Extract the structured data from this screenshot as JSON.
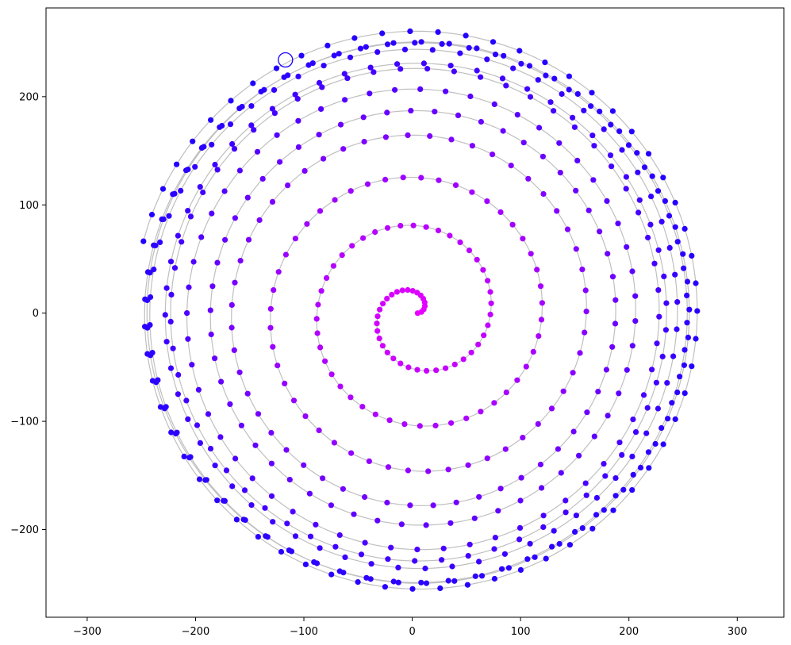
{
  "chart_data": {
    "type": "scatter",
    "title": "",
    "xlabel": "",
    "ylabel": "",
    "xlim": [
      -338,
      343
    ],
    "ylim": [
      -281,
      282
    ],
    "xticks": [
      -300,
      -200,
      -100,
      0,
      100,
      200,
      300
    ],
    "yticks": [
      -200,
      -100,
      0,
      100,
      200
    ],
    "xtick_labels": [
      "−300",
      "−200",
      "−100",
      "0",
      "100",
      "200",
      "300"
    ],
    "ytick_labels": [
      "−200",
      "−100",
      "0",
      "100",
      "200"
    ],
    "grid": false,
    "legend": "none",
    "colors": {
      "curve": "#bfbfbf",
      "inner_points": "#e800ff",
      "mid_points": "#9a00ff",
      "outer_points": "#1800ff",
      "highlight_ring": "#1800ff",
      "axes": "#000000"
    },
    "spiral_path": {
      "description_free_params": true,
      "theta_start": 0.0,
      "theta_end": 72.0,
      "center": [
        5,
        0
      ]
    },
    "series": [
      {
        "values_inner_spiral": [
          [
            0,
            0
          ],
          [
            10,
            1
          ],
          [
            15,
            -5
          ],
          [
            12,
            -12
          ],
          [
            3,
            -15
          ],
          [
            -7,
            -10
          ],
          [
            -10,
            0
          ],
          [
            -5,
            10
          ],
          [
            5,
            15
          ],
          [
            14,
            10
          ],
          [
            20,
            0
          ],
          [
            18,
            -12
          ],
          [
            8,
            -20
          ],
          [
            -5,
            -20
          ],
          [
            -15,
            -12
          ],
          [
            -20,
            0
          ],
          [
            -16,
            14
          ],
          [
            -5,
            22
          ],
          [
            10,
            25
          ],
          [
            22,
            18
          ],
          [
            28,
            5
          ],
          [
            28,
            -10
          ],
          [
            20,
            -25
          ],
          [
            5,
            -32
          ],
          [
            -12,
            -30
          ],
          [
            -24,
            -18
          ],
          [
            -30,
            0
          ],
          [
            -26,
            18
          ],
          [
            -14,
            30
          ],
          [
            5,
            35
          ],
          [
            22,
            30
          ],
          [
            35,
            18
          ],
          [
            40,
            0
          ],
          [
            38,
            -20
          ],
          [
            27,
            -38
          ],
          [
            8,
            -48
          ],
          [
            -14,
            -47
          ],
          [
            -32,
            -36
          ],
          [
            -42,
            -18
          ],
          [
            -45,
            5
          ],
          [
            -38,
            28
          ],
          [
            -22,
            45
          ],
          [
            0,
            53
          ],
          [
            24,
            50
          ],
          [
            44,
            36
          ],
          [
            55,
            15
          ],
          [
            58,
            -10
          ],
          [
            50,
            -35
          ],
          [
            34,
            -55
          ],
          [
            10,
            -66
          ],
          [
            -17,
            -65
          ],
          [
            -40,
            -54
          ],
          [
            -56,
            -34
          ],
          [
            -62,
            -8
          ],
          [
            -58,
            20
          ],
          [
            -45,
            44
          ],
          [
            -22,
            60
          ],
          [
            6,
            68
          ],
          [
            34,
            64
          ],
          [
            58,
            50
          ],
          [
            72,
            26
          ],
          [
            76,
            -4
          ],
          [
            68,
            -33
          ],
          [
            50,
            -58
          ],
          [
            24,
            -74
          ],
          [
            -6,
            -80
          ],
          [
            -36,
            -74
          ],
          [
            -60,
            -56
          ],
          [
            -75,
            -30
          ],
          [
            -78,
            0
          ]
        ],
        "name": ""
      }
    ],
    "highlight_point": [
      -117,
      234
    ]
  }
}
